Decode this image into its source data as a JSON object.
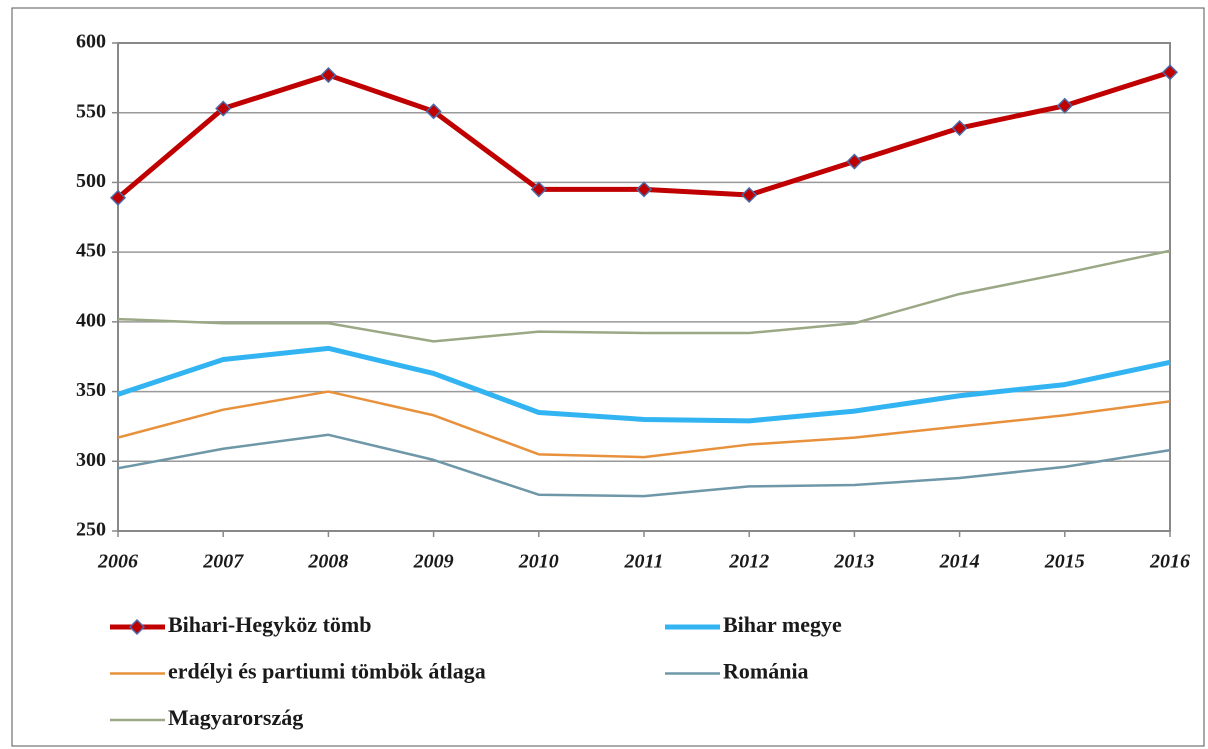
{
  "chart_data": {
    "type": "line",
    "x": [
      2006,
      2007,
      2008,
      2009,
      2010,
      2011,
      2012,
      2013,
      2014,
      2015,
      2016
    ],
    "xlim": [
      2006,
      2016
    ],
    "xticks": [
      2006,
      2007,
      2008,
      2009,
      2010,
      2011,
      2012,
      2013,
      2014,
      2015,
      2016
    ],
    "ylim": [
      250,
      600
    ],
    "yticks": [
      250,
      300,
      350,
      400,
      450,
      500,
      550,
      600
    ],
    "grid": true,
    "legend": "bottom",
    "series": [
      {
        "name": "Bihari-Hegyköz tömb",
        "color": "#c00000",
        "marker": "diamond",
        "values": [
          489,
          553,
          577,
          551,
          495,
          495,
          491,
          515,
          539,
          555,
          579
        ]
      },
      {
        "name": "Bihar megye",
        "color": "#33b4f2",
        "values": [
          348,
          373,
          381,
          363,
          335,
          330,
          329,
          336,
          347,
          355,
          371
        ]
      },
      {
        "name": "erdélyi és partiumi tömbök átlaga",
        "color": "#e8913c",
        "values": [
          317,
          337,
          350,
          333,
          305,
          303,
          312,
          317,
          325,
          333,
          343
        ]
      },
      {
        "name": "Románia",
        "color": "#6e97a8",
        "values": [
          295,
          309,
          319,
          301,
          276,
          275,
          282,
          283,
          288,
          296,
          308
        ]
      },
      {
        "name": "Magyarország",
        "color": "#9ba885",
        "values": [
          402,
          399,
          399,
          386,
          393,
          392,
          392,
          399,
          420,
          435,
          451
        ]
      }
    ]
  }
}
